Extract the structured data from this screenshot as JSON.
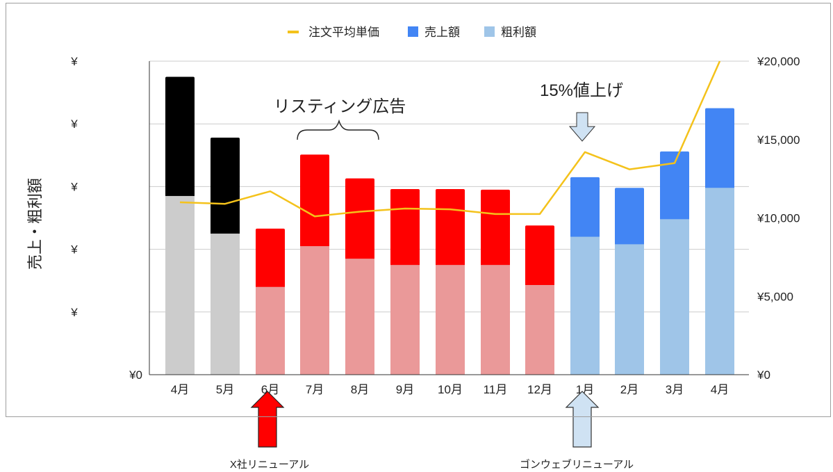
{
  "chart_data": {
    "type": "bar+line",
    "categories": [
      "4月",
      "5月",
      "6月",
      "7月",
      "8月",
      "9月",
      "10月",
      "11月",
      "12月",
      "1月",
      "2月",
      "3月",
      "4月"
    ],
    "series": [
      {
        "name": "注文平均単価",
        "type": "line",
        "axis": "right",
        "color": "#f4c21b",
        "values": [
          11000,
          10900,
          11700,
          10100,
          10400,
          10600,
          10550,
          10250,
          10250,
          14200,
          13100,
          13500,
          20000
        ]
      },
      {
        "name": "売上額",
        "type": "bar",
        "axis": "left",
        "values": [
          4.75,
          3.78,
          2.33,
          3.51,
          3.13,
          2.96,
          2.96,
          2.95,
          2.38,
          3.15,
          2.98,
          3.56,
          4.25
        ],
        "colors": [
          "#000000",
          "#000000",
          "#ff0000",
          "#ff0000",
          "#ff0000",
          "#ff0000",
          "#ff0000",
          "#ff0000",
          "#ff0000",
          "#4285f4",
          "#4285f4",
          "#4285f4",
          "#4285f4"
        ]
      },
      {
        "name": "粗利額",
        "type": "bar",
        "axis": "left",
        "values": [
          2.85,
          2.25,
          1.4,
          2.05,
          1.85,
          1.75,
          1.75,
          1.75,
          1.43,
          2.2,
          2.08,
          2.48,
          2.98
        ],
        "colors": [
          "#cccccc",
          "#cccccc",
          "#ea9999",
          "#ea9999",
          "#ea9999",
          "#ea9999",
          "#ea9999",
          "#ea9999",
          "#ea9999",
          "#9fc5e8",
          "#9fc5e8",
          "#9fc5e8",
          "#9fc5e8"
        ]
      }
    ],
    "legend": [
      {
        "label": "注文平均単価",
        "color": "#f4c21b",
        "marker": "line"
      },
      {
        "label": "売上額",
        "color": "#4285f4",
        "marker": "square"
      },
      {
        "label": "粗利額",
        "color": "#9fc5e8",
        "marker": "square"
      }
    ],
    "legend_position": "top-center",
    "ylabel": "売上・粗利額",
    "left_axis": {
      "range": [
        0,
        5
      ],
      "ticks": [
        "¥0",
        "¥",
        "¥",
        "¥",
        "¥",
        "¥"
      ]
    },
    "right_axis": {
      "range": [
        0,
        20000
      ],
      "ticks": [
        "¥0",
        "¥5,000",
        "¥10,000",
        "¥15,000",
        "¥20,000"
      ]
    },
    "grid": true,
    "annotations": {
      "listing_label": "リスティング広告",
      "price_label": "15%値上げ"
    },
    "captions": {
      "x_renewal": "X社リニューアル",
      "gonwave_renewal": "ゴンウェブリニューアル"
    },
    "colors": {
      "grid": "#cccccc",
      "axis": "#333333"
    }
  }
}
